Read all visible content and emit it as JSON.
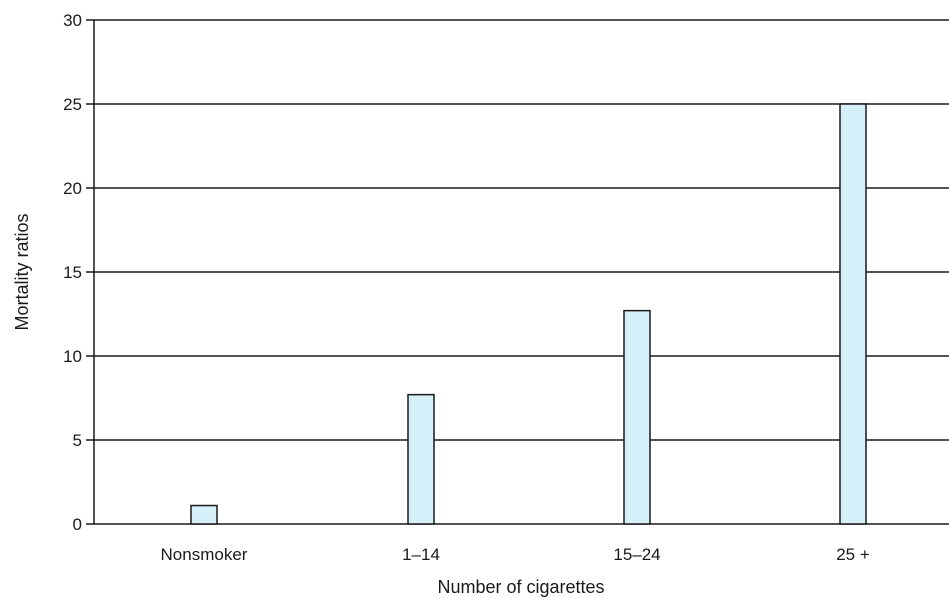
{
  "chart_data": {
    "type": "bar",
    "categories": [
      "Nonsmoker",
      "1–14",
      "15–24",
      "25 +"
    ],
    "values": [
      1.1,
      7.7,
      12.7,
      25
    ],
    "xlabel": "Number of cigarettes",
    "ylabel": "Mortality ratios",
    "ylim": [
      0,
      30
    ],
    "yticks": [
      "0",
      "5",
      "10",
      "15",
      "20",
      "25",
      "30"
    ],
    "grid": "horizontal",
    "colors": {
      "bar_fill": "#d6f0fa",
      "bar_stroke": "#1a1a1a",
      "grid": "#1a1a1a"
    }
  }
}
